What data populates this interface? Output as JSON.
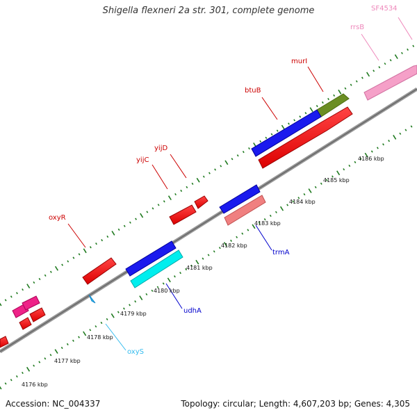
{
  "title": "Shigella flexneri 2a str. 301, complete genome",
  "footer": {
    "accession": "Accession: NC_004337",
    "summary": "Topology: circular; Length: 4,607,203 bp; Genes: 4,305"
  },
  "colors": {
    "backbone": "#888888",
    "tick": "#1f7a1f",
    "label_red": "#cc0000",
    "label_blue": "#0000cc",
    "label_cyan": "#33bbee",
    "label_pink": "#ee88bb"
  },
  "scale_labels": [
    "4176 kbp",
    "4177 kbp",
    "4178 kbp",
    "4179 kbp",
    "4180 kbp",
    "4181 kbp",
    "4182 kbp",
    "4183 kbp",
    "4184 kbp",
    "4185 kbp",
    "4186 kbp"
  ],
  "gene_labels": [
    {
      "text": "SF4534",
      "color": "#ee88bb"
    },
    {
      "text": "rrsB",
      "color": "#ee88bb"
    },
    {
      "text": "murI",
      "color": "#cc0000"
    },
    {
      "text": "btuB",
      "color": "#cc0000"
    },
    {
      "text": "yijD",
      "color": "#cc0000"
    },
    {
      "text": "yijC",
      "color": "#cc0000"
    },
    {
      "text": "oxyR",
      "color": "#cc0000"
    },
    {
      "text": "trmA",
      "color": "#0000cc"
    },
    {
      "text": "udhA",
      "color": "#0000cc"
    },
    {
      "text": "oxyS",
      "color": "#33bbee"
    }
  ]
}
